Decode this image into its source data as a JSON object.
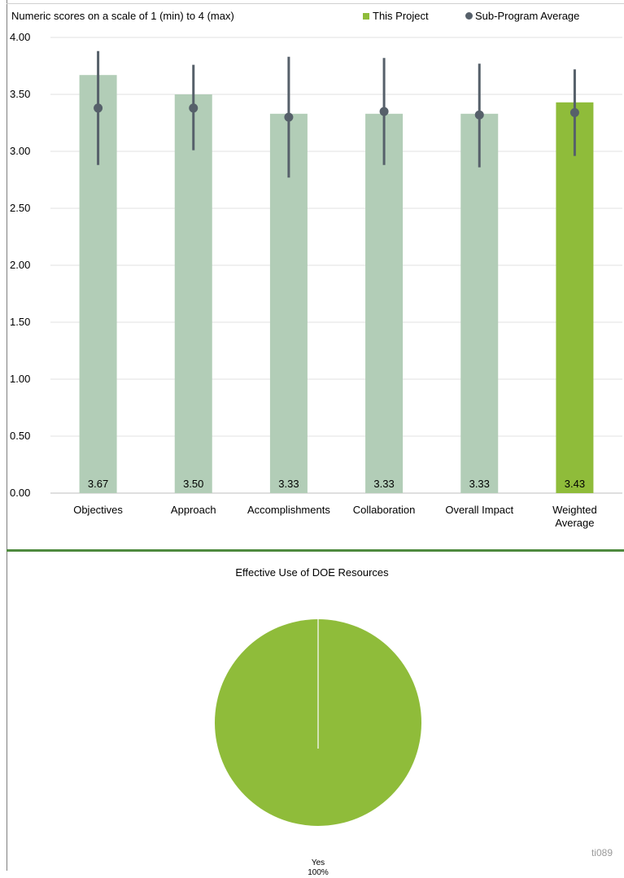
{
  "colors": {
    "bar": "#b2cdb7",
    "bar_highlight": "#8fbc3a",
    "average_marker": "#56606a",
    "divider": "#4e8a3e",
    "pie": "#8fbc3a"
  },
  "chart_data": [
    {
      "type": "bar",
      "title": "",
      "subtitle": "Numeric scores on a scale of 1 (min) to 4 (max)",
      "categories": [
        "Objectives",
        "Approach",
        "Accomplishments",
        "Collaboration",
        "Overall Impact",
        "Weighted Average"
      ],
      "series": [
        {
          "name": "This Project",
          "values": [
            3.67,
            3.5,
            3.33,
            3.33,
            3.33,
            3.43
          ],
          "value_labels": [
            "3.67",
            "3.50",
            "3.33",
            "3.33",
            "3.33",
            "3.43"
          ]
        },
        {
          "name": "Sub-Program Average",
          "values": [
            3.38,
            3.38,
            3.3,
            3.35,
            3.32,
            3.34
          ],
          "error_low": [
            2.88,
            3.01,
            2.77,
            2.88,
            2.86,
            2.96
          ],
          "error_high": [
            3.88,
            3.76,
            3.83,
            3.82,
            3.77,
            3.72
          ]
        }
      ],
      "highlight_category": "Weighted Average",
      "ylim": [
        0,
        4
      ],
      "yticks": [
        0,
        0.5,
        1,
        1.5,
        2,
        2.5,
        3,
        3.5,
        4
      ],
      "ytick_labels": [
        "0.00",
        "0.50",
        "1.00",
        "1.50",
        "2.00",
        "2.50",
        "3.00",
        "3.50",
        "4.00"
      ],
      "xlabel": "",
      "ylabel": "",
      "grid": true,
      "legend": [
        "This Project",
        "Sub-Program Average"
      ],
      "legend_position": "top-right"
    },
    {
      "type": "pie",
      "title": "Effective Use of DOE Resources",
      "slices": [
        {
          "label": "Yes",
          "value": 100,
          "value_label": "100%"
        }
      ]
    }
  ],
  "watermark": "ti089"
}
